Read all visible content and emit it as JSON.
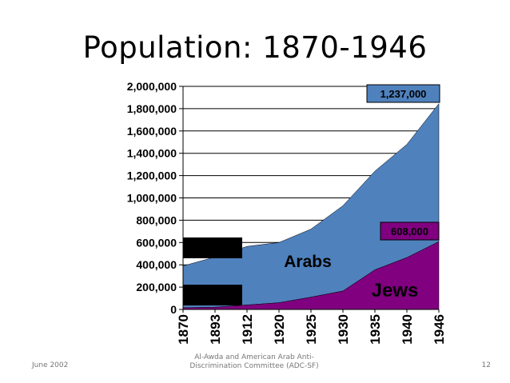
{
  "slide": {
    "title": "Population: 1870-1946",
    "footer_left": "June 2002",
    "footer_center": "Al-Awda and American Arab Anti-Discrimination Committee (ADC-SF)",
    "footer_right": "12"
  },
  "chart_data": {
    "type": "area",
    "stacked": true,
    "categories": [
      "1870",
      "1893",
      "1912",
      "1920",
      "1925",
      "1930",
      "1935",
      "1940",
      "1946"
    ],
    "ylim": [
      0,
      2000000
    ],
    "yticks": [
      0,
      200000,
      400000,
      600000,
      800000,
      1000000,
      1200000,
      1400000,
      1600000,
      1800000,
      2000000
    ],
    "ytick_labels": [
      "0",
      "200,000",
      "400,000",
      "600,000",
      "800,000",
      "1,000,000",
      "1,200,000",
      "1,400,000",
      "1,600,000",
      "1,800,000",
      "2,000,000"
    ],
    "grid": true,
    "series": [
      {
        "name": "Jews",
        "color": "#800080",
        "values": [
          15000,
          20000,
          40000,
          60000,
          110000,
          165000,
          355000,
          465000,
          608000
        ]
      },
      {
        "name": "Arabs",
        "color": "#4f81bd",
        "values": [
          375000,
          450000,
          525000,
          540000,
          610000,
          765000,
          885000,
          1015000,
          1237000
        ]
      }
    ],
    "annotations": {
      "arabs_total": "1,237,000",
      "jews_total": "608,000"
    },
    "redaction_boxes": 2
  }
}
